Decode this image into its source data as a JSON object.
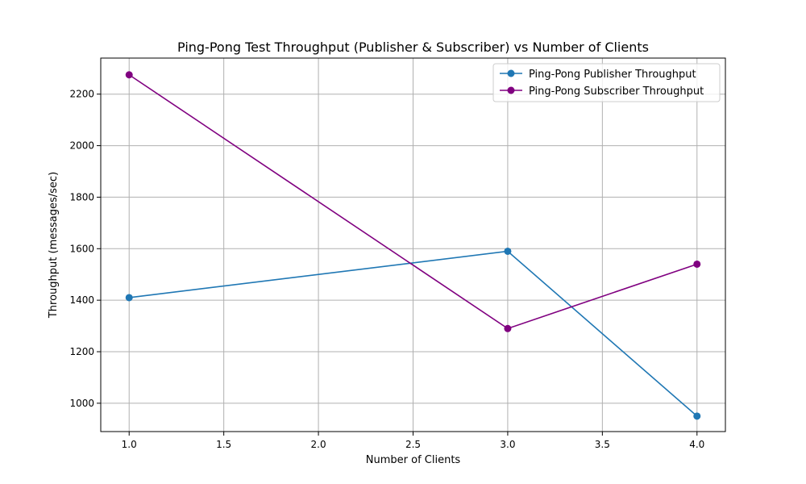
{
  "chart_data": {
    "type": "line",
    "title": "Ping-Pong Test Throughput (Publisher & Subscriber) vs Number of Clients",
    "xlabel": "Number of Clients",
    "ylabel": "Throughput (messages/sec)",
    "xlim": [
      0.85,
      4.15
    ],
    "ylim": [
      890,
      2340
    ],
    "xticks": [
      "1.0",
      "1.5",
      "2.0",
      "2.5",
      "3.0",
      "3.5",
      "4.0"
    ],
    "yticks": [
      "1000",
      "1200",
      "1400",
      "1600",
      "1800",
      "2000",
      "2200"
    ],
    "grid": true,
    "legend_position": "top-right",
    "series": [
      {
        "name": "Ping-Pong Publisher Throughput",
        "color": "#1f77b4",
        "x": [
          1,
          3,
          4
        ],
        "y": [
          1410,
          1590,
          950
        ]
      },
      {
        "name": "Ping-Pong Subscriber Throughput",
        "color": "#800080",
        "x": [
          1,
          3,
          4
        ],
        "y": [
          2275,
          1290,
          1540
        ]
      }
    ]
  }
}
